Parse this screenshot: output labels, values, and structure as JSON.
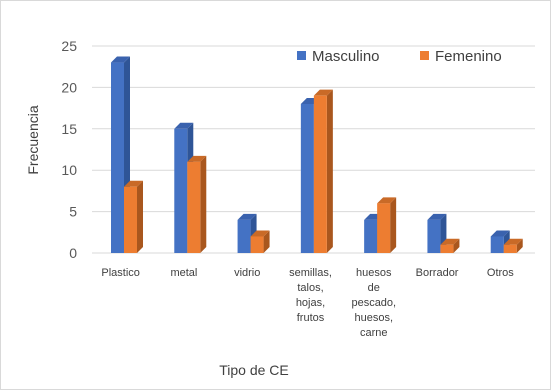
{
  "chart_data": {
    "type": "bar",
    "style": "3d-clustered-column",
    "categories": [
      [
        "Plastico"
      ],
      [
        "metal"
      ],
      [
        "vidrio"
      ],
      [
        "semillas,",
        "talos,",
        "hojas,",
        "frutos"
      ],
      [
        "huesos",
        "de",
        "pescado,",
        "huesos,",
        "carne"
      ],
      [
        "Borrador"
      ],
      [
        "Otros"
      ]
    ],
    "series": [
      {
        "name": "Masculino",
        "values": [
          23,
          15,
          4,
          18,
          4,
          4,
          2
        ],
        "color": "#4472C4",
        "side_color": "#2F5597",
        "top_color": "#3A62AE"
      },
      {
        "name": "Femenino",
        "values": [
          8,
          11,
          2,
          19,
          6,
          1,
          1
        ],
        "color": "#ED7D31",
        "side_color": "#A9571E",
        "top_color": "#C96A27"
      }
    ],
    "xlabel": "Tipo de CE",
    "ylabel": "Frecuencia",
    "ylim": [
      0,
      25
    ],
    "yticks": [
      0,
      5,
      10,
      15,
      20,
      25
    ],
    "grid": true,
    "gridline_color": "#d9d9d9",
    "legend_position": "top-right"
  }
}
